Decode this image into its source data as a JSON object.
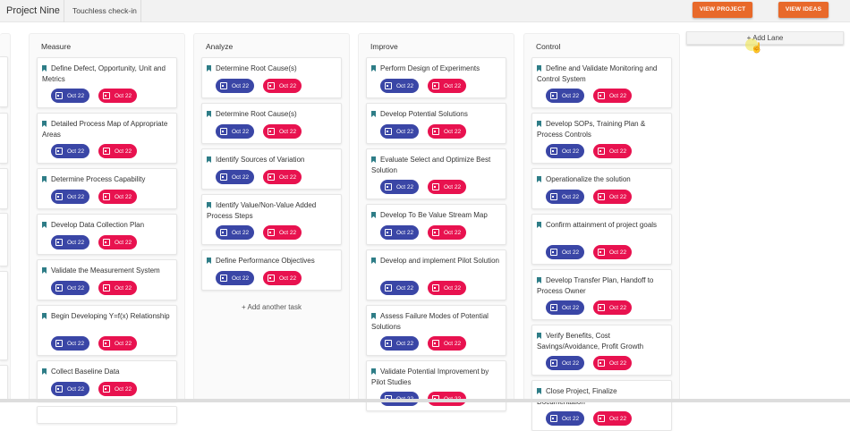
{
  "header": {
    "project_tab": "Project Nine",
    "second_tab": "Touchless check-in",
    "view_project": "VIEW PROJECT",
    "view_ideas": "VIEW IDEAS"
  },
  "add_lane": "+ Add Lane",
  "add_task": "+ Add another task",
  "badge_colors": {
    "start": "#3a46a6",
    "due": "#e8124f"
  },
  "lanes": [
    {
      "title": "Measure",
      "cards": [
        {
          "title": "Define Defect, Opportunity, Unit and Metrics",
          "start": "Oct 22",
          "due": "Oct 22"
        },
        {
          "title": "Detailed Process Map of Appropriate Areas",
          "start": "Oct 22",
          "due": "Oct 22"
        },
        {
          "title": "Determine Process Capability",
          "start": "Oct 22",
          "due": "Oct 22"
        },
        {
          "title": "Develop Data Collection Plan",
          "start": "Oct 22",
          "due": "Oct 22"
        },
        {
          "title": "Validate the Measurement System",
          "start": "Oct 22",
          "due": "Oct 22"
        },
        {
          "title": "Begin Developing Y=f(x) Relationship",
          "start": "Oct 22",
          "due": "Oct 22"
        },
        {
          "title": "Collect Baseline Data",
          "start": "Oct 22",
          "due": "Oct 22"
        }
      ]
    },
    {
      "title": "Analyze",
      "cards": [
        {
          "title": "Determine Root Cause(s)",
          "start": "Oct 22",
          "due": "Oct 22"
        },
        {
          "title": "Determine Root Cause(s)",
          "start": "Oct 22",
          "due": "Oct 22"
        },
        {
          "title": "Identify Sources of Variation",
          "start": "Oct 22",
          "due": "Oct 22"
        },
        {
          "title": "Identify Value/Non-Value Added Process Steps",
          "start": "Oct 22",
          "due": "Oct 22"
        },
        {
          "title": "Define Performance Objectives",
          "start": "Oct 22",
          "due": "Oct 22"
        }
      ],
      "show_add": true
    },
    {
      "title": "Improve",
      "cards": [
        {
          "title": "Perform Design of Experiments",
          "start": "Oct 22",
          "due": "Oct 22"
        },
        {
          "title": "Develop Potential Solutions",
          "start": "Oct 22",
          "due": "Oct 22"
        },
        {
          "title": "Evaluate Select and Optimize Best Solution",
          "start": "Oct 22",
          "due": "Oct 22"
        },
        {
          "title": "Develop To Be Value Stream Map",
          "start": "Oct 22",
          "due": "Oct 22"
        },
        {
          "title": "Develop and implement Pilot Solution",
          "start": "Oct 22",
          "due": "Oct 22"
        },
        {
          "title": "Assess Failure Modes of Potential Solutions",
          "start": "Oct 22",
          "due": "Oct 22"
        },
        {
          "title": "Validate Potential Improvement by Pilot Studies",
          "start": "Oct 22",
          "due": "Oct 22"
        }
      ]
    },
    {
      "title": "Control",
      "cards": [
        {
          "title": "Define and Validate Monitoring and Control System",
          "start": "Oct 22",
          "due": "Oct 22"
        },
        {
          "title": "Develop SOPs, Training Plan & Process Controls",
          "start": "Oct 22",
          "due": "Oct 22"
        },
        {
          "title": "Operationalize the solution",
          "start": "Oct 22",
          "due": "Oct 22"
        },
        {
          "title": "Confirm attainment of project goals",
          "start": "Oct 22",
          "due": "Oct 22"
        },
        {
          "title": "Develop Transfer Plan, Handoff to Process Owner",
          "start": "Oct 22",
          "due": "Oct 22"
        },
        {
          "title": "Verify Benefits, Cost Savings/Avoidance, Profit Growth",
          "start": "Oct 22",
          "due": "Oct 22"
        },
        {
          "title": "Close Project, Finalize Documentation",
          "start": "Oct 22",
          "due": "Oct 22"
        }
      ]
    }
  ]
}
